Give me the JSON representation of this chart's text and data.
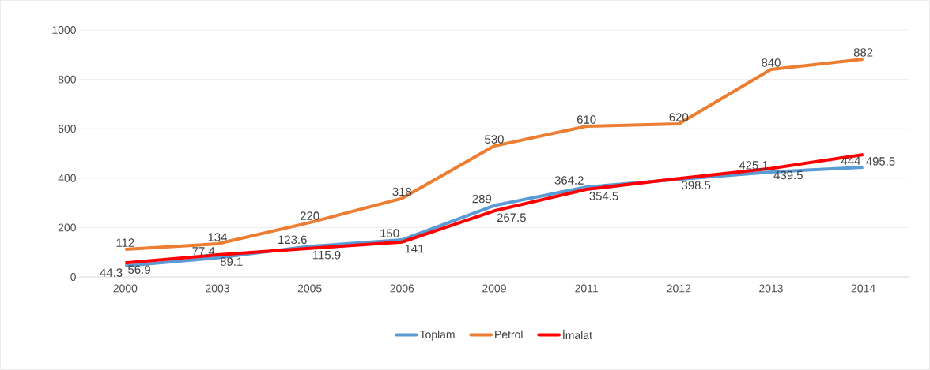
{
  "chart_data": {
    "type": "line",
    "categories": [
      "2000",
      "2003",
      "2005",
      "2006",
      "2009",
      "2011",
      "2012",
      "2013",
      "2014"
    ],
    "ylim": [
      0,
      1000
    ],
    "yticks": [
      0,
      200,
      400,
      600,
      800,
      1000
    ],
    "grid": "y",
    "legend": "bottom",
    "marker": "none",
    "line_style": "solid",
    "series": [
      {
        "name": "Toplam",
        "color": "#5b9bd5",
        "values": [
          44.3,
          77.4,
          123.6,
          150,
          289,
          364.2,
          395,
          425.1,
          444
        ],
        "value_labels": [
          "44.3",
          "77.4",
          "123.6",
          "150",
          "289",
          "364.2",
          null,
          "425.1",
          "444"
        ]
      },
      {
        "name": "Petrol",
        "color": "#ed7d31",
        "values": [
          112,
          134,
          220,
          318,
          530,
          610,
          620,
          840,
          882
        ],
        "value_labels": [
          "112",
          "134",
          "220",
          "318",
          "530",
          "610",
          "620",
          "840",
          "882"
        ]
      },
      {
        "name": "İmalat",
        "color": "#ff0000",
        "values": [
          56.9,
          89.1,
          115.9,
          141,
          267.5,
          354.5,
          398.5,
          439.5,
          495.5
        ],
        "value_labels": [
          "56.9",
          "89.1",
          "115.9",
          "141",
          "267.5",
          "354.5",
          "398.5",
          "439.5",
          "495.5"
        ]
      }
    ]
  }
}
